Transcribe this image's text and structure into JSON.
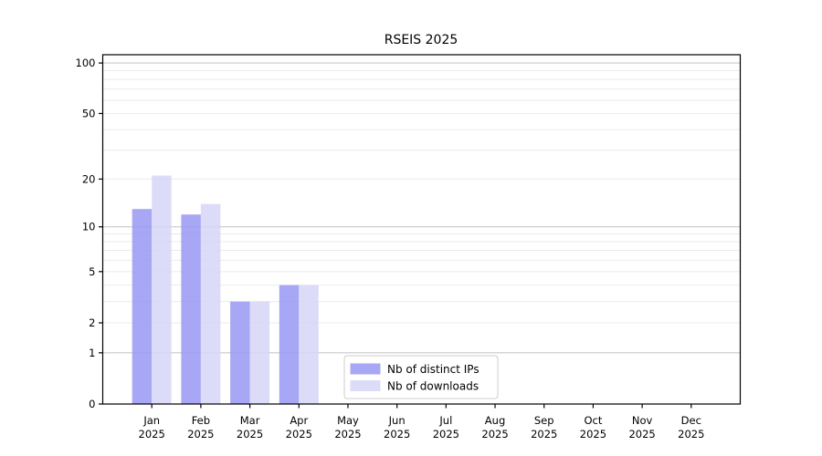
{
  "figure": {
    "background": "#ffffff"
  },
  "chart_data": {
    "type": "bar",
    "title": "RSEIS 2025",
    "categories": [
      "Jan\n2025",
      "Feb\n2025",
      "Mar\n2025",
      "Apr\n2025",
      "May\n2025",
      "Jun\n2025",
      "Jul\n2025",
      "Aug\n2025",
      "Sep\n2025",
      "Oct\n2025",
      "Nov\n2025",
      "Dec\n2025"
    ],
    "series": [
      {
        "name": "Nb of distinct IPs",
        "color": "rgba(152,152,243,0.85)",
        "swatch_observed": "#a7a7f4",
        "values": [
          13,
          12,
          3,
          4,
          0,
          0,
          0,
          0,
          0,
          0,
          0,
          0
        ]
      },
      {
        "name": "Nb of downloads",
        "color": "rgba(214,214,247,0.85)",
        "swatch_observed": "#dcdcf8",
        "values": [
          21,
          14,
          3,
          4,
          0,
          0,
          0,
          0,
          0,
          0,
          0,
          0
        ]
      }
    ],
    "yscale": "log1p",
    "ylim": [
      0,
      112
    ],
    "yticks": [
      0,
      1,
      2,
      5,
      10,
      20,
      50,
      100
    ],
    "grid_major_at": [
      1,
      10,
      100
    ],
    "grid_minor_at": [
      2,
      3,
      4,
      5,
      6,
      7,
      8,
      9,
      20,
      30,
      40,
      50,
      60,
      70,
      80,
      90
    ],
    "grid_on": true,
    "legend_location": "inside-bottom-center",
    "colors": {
      "axis": "#000000",
      "grid_major": "#c9c9c9",
      "grid_minor": "#ebebeb",
      "legend_border": "#cccccc",
      "legend_background": "#ffffff",
      "text": "#000000"
    }
  }
}
